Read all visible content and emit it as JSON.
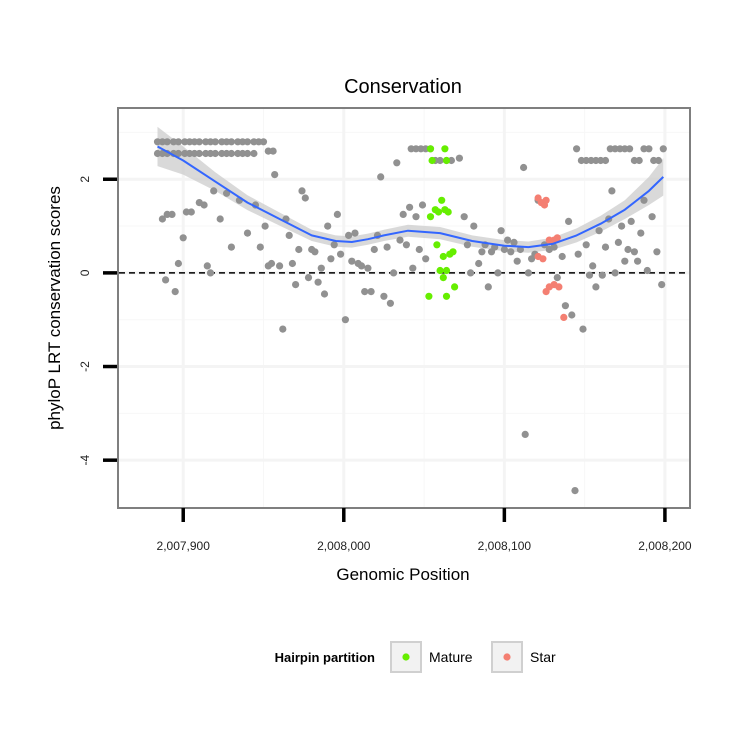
{
  "chart_data": {
    "type": "scatter",
    "title": "Conservation",
    "xlabel": "Genomic Position",
    "ylabel": "phyloP LRT conservation scores",
    "xlim": [
      2007860,
      2008215
    ],
    "ylim": [
      -5.0,
      3.5
    ],
    "x_ticks": [
      2007900,
      2008000,
      2008100,
      2008200
    ],
    "x_tick_labels": [
      "2,007,900",
      "2,008,000",
      "2,008,100",
      "2,008,200"
    ],
    "y_ticks": [
      -4,
      -2,
      0,
      2
    ],
    "y_tick_labels": [
      "-4",
      "-2",
      "0",
      "2"
    ],
    "grid": true,
    "reference_line": {
      "y": 0,
      "style": "dashed",
      "color": "#000000"
    },
    "legend": {
      "title": "Hairpin partition",
      "position": "bottom",
      "entries": [
        {
          "label": "Mature",
          "color": "#66ee00"
        },
        {
          "label": "Star",
          "color": "#f47f72"
        }
      ]
    },
    "colors": {
      "background_points": "#919191",
      "Mature": "#66ee00",
      "Star": "#f47f72",
      "smooth_line": "#3366ff",
      "confidence_band": "#cccccc"
    },
    "series": [
      {
        "color_key": "background_points",
        "points": [
          [
            2007884,
            2.8
          ],
          [
            2007887,
            2.8
          ],
          [
            2007890,
            2.8
          ],
          [
            2007894,
            2.8
          ],
          [
            2007897,
            2.8
          ],
          [
            2007901,
            2.8
          ],
          [
            2007904,
            2.8
          ],
          [
            2007907,
            2.8
          ],
          [
            2007910,
            2.8
          ],
          [
            2007914,
            2.8
          ],
          [
            2007917,
            2.8
          ],
          [
            2007920,
            2.8
          ],
          [
            2007924,
            2.8
          ],
          [
            2007927,
            2.8
          ],
          [
            2007930,
            2.8
          ],
          [
            2007934,
            2.8
          ],
          [
            2007937,
            2.8
          ],
          [
            2007940,
            2.8
          ],
          [
            2007944,
            2.8
          ],
          [
            2007947,
            2.8
          ],
          [
            2007950,
            2.8
          ],
          [
            2007884,
            2.55
          ],
          [
            2007887,
            2.55
          ],
          [
            2007890,
            2.55
          ],
          [
            2007894,
            2.55
          ],
          [
            2007897,
            2.55
          ],
          [
            2007901,
            2.55
          ],
          [
            2007904,
            2.55
          ],
          [
            2007907,
            2.55
          ],
          [
            2007910,
            2.55
          ],
          [
            2007914,
            2.55
          ],
          [
            2007917,
            2.55
          ],
          [
            2007920,
            2.55
          ],
          [
            2007924,
            2.55
          ],
          [
            2007927,
            2.55
          ],
          [
            2007930,
            2.55
          ],
          [
            2007934,
            2.55
          ],
          [
            2007937,
            2.55
          ],
          [
            2007940,
            2.55
          ],
          [
            2007944,
            2.55
          ],
          [
            2007953,
            2.6
          ],
          [
            2007956,
            2.6
          ],
          [
            2007887,
            1.15
          ],
          [
            2007889,
            -0.15
          ],
          [
            2007890,
            1.25
          ],
          [
            2007893,
            1.25
          ],
          [
            2007895,
            -0.4
          ],
          [
            2007897,
            0.2
          ],
          [
            2007900,
            0.75
          ],
          [
            2007902,
            1.3
          ],
          [
            2007905,
            1.3
          ],
          [
            2007910,
            1.5
          ],
          [
            2007913,
            1.45
          ],
          [
            2007915,
            0.15
          ],
          [
            2007917,
            0.0
          ],
          [
            2007919,
            1.75
          ],
          [
            2007923,
            1.15
          ],
          [
            2007927,
            1.7
          ],
          [
            2007930,
            0.55
          ],
          [
            2007935,
            1.55
          ],
          [
            2007940,
            0.85
          ],
          [
            2007945,
            1.45
          ],
          [
            2007948,
            0.55
          ],
          [
            2007951,
            1.0
          ],
          [
            2007953,
            0.15
          ],
          [
            2007955,
            0.2
          ],
          [
            2007957,
            2.1
          ],
          [
            2007960,
            0.15
          ],
          [
            2007962,
            -1.2
          ],
          [
            2007964,
            1.15
          ],
          [
            2007966,
            0.8
          ],
          [
            2007968,
            0.2
          ],
          [
            2007970,
            -0.25
          ],
          [
            2007972,
            0.5
          ],
          [
            2007974,
            1.75
          ],
          [
            2007976,
            1.6
          ],
          [
            2007978,
            -0.1
          ],
          [
            2007980,
            0.5
          ],
          [
            2007982,
            0.45
          ],
          [
            2007984,
            -0.2
          ],
          [
            2007986,
            0.1
          ],
          [
            2007988,
            -0.45
          ],
          [
            2007990,
            1.0
          ],
          [
            2007992,
            0.3
          ],
          [
            2007994,
            0.6
          ],
          [
            2007996,
            1.25
          ],
          [
            2007998,
            0.4
          ],
          [
            2008001,
            -1.0
          ],
          [
            2008003,
            0.8
          ],
          [
            2008005,
            0.25
          ],
          [
            2008007,
            0.85
          ],
          [
            2008009,
            0.2
          ],
          [
            2008011,
            0.15
          ],
          [
            2008013,
            -0.4
          ],
          [
            2008015,
            0.1
          ],
          [
            2008017,
            -0.4
          ],
          [
            2008019,
            0.5
          ],
          [
            2008021,
            0.8
          ],
          [
            2008023,
            2.05
          ],
          [
            2008025,
            -0.5
          ],
          [
            2008027,
            0.55
          ],
          [
            2008029,
            -0.65
          ],
          [
            2008031,
            0.0
          ],
          [
            2008033,
            2.35
          ],
          [
            2008035,
            0.7
          ],
          [
            2008037,
            1.25
          ],
          [
            2008039,
            0.6
          ],
          [
            2008041,
            1.4
          ],
          [
            2008043,
            0.1
          ],
          [
            2008045,
            1.2
          ],
          [
            2008047,
            0.5
          ],
          [
            2008049,
            1.45
          ],
          [
            2008051,
            0.3
          ],
          [
            2008042,
            2.65
          ],
          [
            2008045,
            2.65
          ],
          [
            2008048,
            2.65
          ],
          [
            2008051,
            2.65
          ],
          [
            2008054,
            2.65
          ],
          [
            2008057,
            2.4
          ],
          [
            2008060,
            2.4
          ],
          [
            2008064,
            2.4
          ],
          [
            2008067,
            2.4
          ],
          [
            2008072,
            2.45
          ],
          [
            2008075,
            1.2
          ],
          [
            2008077,
            0.6
          ],
          [
            2008079,
            0.0
          ],
          [
            2008081,
            1.0
          ],
          [
            2008084,
            0.2
          ],
          [
            2008086,
            0.45
          ],
          [
            2008088,
            0.6
          ],
          [
            2008090,
            -0.3
          ],
          [
            2008092,
            0.45
          ],
          [
            2008094,
            0.55
          ],
          [
            2008096,
            0.0
          ],
          [
            2008098,
            0.9
          ],
          [
            2008100,
            0.5
          ],
          [
            2008102,
            0.7
          ],
          [
            2008104,
            0.45
          ],
          [
            2008106,
            0.65
          ],
          [
            2008108,
            0.25
          ],
          [
            2008110,
            0.5
          ],
          [
            2008112,
            2.25
          ],
          [
            2008113,
            -3.45
          ],
          [
            2008115,
            0.0
          ],
          [
            2008117,
            0.3
          ],
          [
            2008119,
            0.4
          ],
          [
            2008121,
            1.55
          ],
          [
            2008125,
            0.6
          ],
          [
            2008128,
            0.5
          ],
          [
            2008131,
            0.55
          ],
          [
            2008133,
            -0.1
          ],
          [
            2008136,
            0.35
          ],
          [
            2008138,
            -0.7
          ],
          [
            2008140,
            1.1
          ],
          [
            2008142,
            -0.9
          ],
          [
            2008144,
            -4.65
          ],
          [
            2008146,
            0.4
          ],
          [
            2008149,
            -1.2
          ],
          [
            2008151,
            0.6
          ],
          [
            2008145,
            2.65
          ],
          [
            2008148,
            2.4
          ],
          [
            2008151,
            2.4
          ],
          [
            2008154,
            2.4
          ],
          [
            2008157,
            2.4
          ],
          [
            2008160,
            2.4
          ],
          [
            2008163,
            2.4
          ],
          [
            2008166,
            2.65
          ],
          [
            2008169,
            2.65
          ],
          [
            2008172,
            2.65
          ],
          [
            2008175,
            2.65
          ],
          [
            2008178,
            2.65
          ],
          [
            2008181,
            2.4
          ],
          [
            2008184,
            2.4
          ],
          [
            2008187,
            2.65
          ],
          [
            2008190,
            2.65
          ],
          [
            2008193,
            2.4
          ],
          [
            2008196,
            2.4
          ],
          [
            2008199,
            2.65
          ],
          [
            2008153,
            -0.05
          ],
          [
            2008155,
            0.15
          ],
          [
            2008157,
            -0.3
          ],
          [
            2008159,
            0.9
          ],
          [
            2008161,
            -0.05
          ],
          [
            2008163,
            0.55
          ],
          [
            2008165,
            1.15
          ],
          [
            2008167,
            1.75
          ],
          [
            2008169,
            0.0
          ],
          [
            2008171,
            0.65
          ],
          [
            2008173,
            1.0
          ],
          [
            2008175,
            0.25
          ],
          [
            2008177,
            0.5
          ],
          [
            2008179,
            1.1
          ],
          [
            2008181,
            0.45
          ],
          [
            2008183,
            0.25
          ],
          [
            2008185,
            0.85
          ],
          [
            2008187,
            1.55
          ],
          [
            2008189,
            0.05
          ],
          [
            2008192,
            1.2
          ],
          [
            2008195,
            0.45
          ],
          [
            2008198,
            -0.25
          ]
        ]
      },
      {
        "name": "Mature",
        "color_key": "Mature",
        "points": [
          [
            2008054,
            2.65
          ],
          [
            2008055,
            2.4
          ],
          [
            2008063,
            2.65
          ],
          [
            2008064,
            2.4
          ],
          [
            2008054,
            1.2
          ],
          [
            2008057,
            1.35
          ],
          [
            2008059,
            1.3
          ],
          [
            2008061,
            1.55
          ],
          [
            2008063,
            1.35
          ],
          [
            2008065,
            1.3
          ],
          [
            2008058,
            0.6
          ],
          [
            2008062,
            0.35
          ],
          [
            2008064,
            0.05
          ],
          [
            2008066,
            0.4
          ],
          [
            2008068,
            0.45
          ],
          [
            2008060,
            0.05
          ],
          [
            2008062,
            -0.1
          ],
          [
            2008053,
            -0.5
          ],
          [
            2008064,
            -0.5
          ],
          [
            2008069,
            -0.3
          ]
        ]
      },
      {
        "name": "Star",
        "color_key": "Star",
        "points": [
          [
            2008121,
            1.6
          ],
          [
            2008123,
            1.5
          ],
          [
            2008125,
            1.45
          ],
          [
            2008126,
            1.55
          ],
          [
            2008128,
            0.7
          ],
          [
            2008131,
            0.7
          ],
          [
            2008133,
            0.75
          ],
          [
            2008121,
            0.35
          ],
          [
            2008124,
            0.3
          ],
          [
            2008126,
            -0.4
          ],
          [
            2008128,
            -0.3
          ],
          [
            2008131,
            -0.25
          ],
          [
            2008134,
            -0.3
          ],
          [
            2008137,
            -0.95
          ]
        ]
      }
    ],
    "smooth": {
      "x": [
        2007884,
        2007900,
        2007920,
        2007940,
        2007960,
        2007980,
        2007995,
        2008005,
        2008015,
        2008025,
        2008040,
        2008060,
        2008080,
        2008100,
        2008115,
        2008130,
        2008145,
        2008160,
        2008175,
        2008190,
        2008199
      ],
      "y": [
        2.7,
        2.4,
        1.95,
        1.5,
        1.15,
        0.8,
        0.68,
        0.66,
        0.72,
        0.8,
        0.9,
        0.85,
        0.68,
        0.58,
        0.55,
        0.62,
        0.8,
        1.05,
        1.35,
        1.75,
        2.05
      ],
      "band_halfwidth": [
        0.42,
        0.3,
        0.2,
        0.16,
        0.14,
        0.12,
        0.12,
        0.12,
        0.12,
        0.12,
        0.13,
        0.13,
        0.12,
        0.12,
        0.12,
        0.13,
        0.15,
        0.17,
        0.2,
        0.3,
        0.4
      ]
    }
  }
}
